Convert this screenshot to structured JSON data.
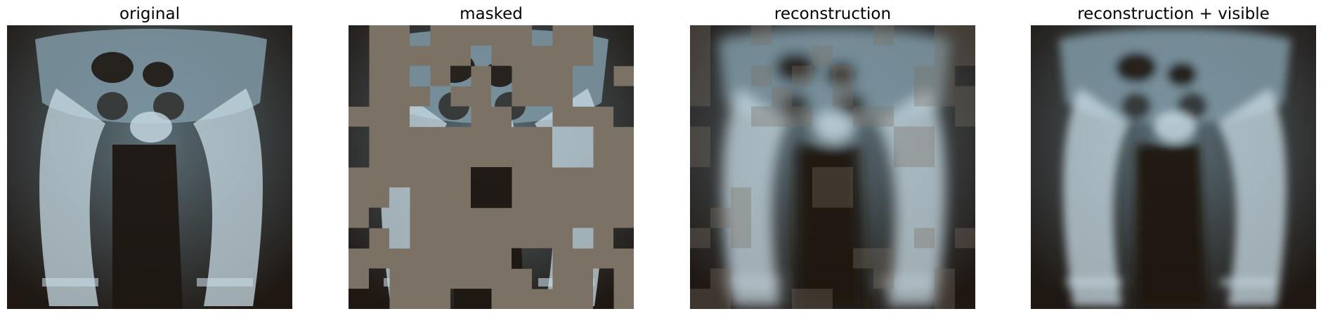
{
  "panels": [
    {
      "title": "original"
    },
    {
      "title": "masked"
    },
    {
      "title": "reconstruction"
    },
    {
      "title": "reconstruction + visible"
    }
  ],
  "colors": {
    "mask_gray": "#7b7164",
    "xray_dark": "#1e1712",
    "bone_light": "#c8dbe4",
    "bone_mid": "#7f99a6"
  },
  "grid": {
    "columns": 14,
    "rows": 14,
    "visible_patches": [
      [
        0,
        0
      ],
      [
        0,
        3
      ],
      [
        0,
        9
      ],
      [
        0,
        12
      ],
      [
        0,
        13
      ],
      [
        1,
        0
      ],
      [
        1,
        6
      ],
      [
        1,
        12
      ],
      [
        1,
        13
      ],
      [
        2,
        0
      ],
      [
        2,
        3
      ],
      [
        2,
        5
      ],
      [
        2,
        7
      ],
      [
        2,
        11
      ],
      [
        2,
        12
      ],
      [
        3,
        0
      ],
      [
        3,
        4
      ],
      [
        3,
        7
      ],
      [
        3,
        11
      ],
      [
        3,
        12
      ],
      [
        3,
        13
      ],
      [
        4,
        3
      ],
      [
        4,
        4
      ],
      [
        4,
        5
      ],
      [
        4,
        8
      ],
      [
        4,
        9
      ],
      [
        4,
        13
      ],
      [
        5,
        0
      ],
      [
        5,
        10
      ],
      [
        5,
        11
      ],
      [
        6,
        0
      ],
      [
        6,
        10
      ],
      [
        6,
        11
      ],
      [
        7,
        6
      ],
      [
        7,
        7
      ],
      [
        8,
        2
      ],
      [
        8,
        6
      ],
      [
        8,
        7
      ],
      [
        9,
        1
      ],
      [
        9,
        2
      ],
      [
        10,
        0
      ],
      [
        10,
        2
      ],
      [
        10,
        11
      ],
      [
        10,
        13
      ],
      [
        11,
        8
      ],
      [
        11,
        9
      ],
      [
        12,
        1
      ],
      [
        12,
        9
      ],
      [
        12,
        12
      ],
      [
        13,
        5
      ],
      [
        13,
        6
      ],
      [
        13,
        12
      ],
      [
        13,
        0
      ],
      [
        13,
        1
      ]
    ]
  }
}
